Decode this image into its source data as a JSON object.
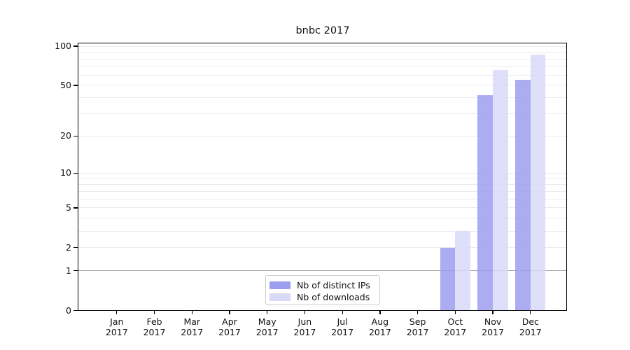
{
  "title": "bnbc 2017",
  "chart_data": {
    "type": "bar",
    "categories": [
      "Jan 2017",
      "Feb 2017",
      "Mar 2017",
      "Apr 2017",
      "May 2017",
      "Jun 2017",
      "Jul 2017",
      "Aug 2017",
      "Sep 2017",
      "Oct 2017",
      "Nov 2017",
      "Dec 2017"
    ],
    "series": [
      {
        "name": "Nb of distinct IPs",
        "color": "#9e9ef0",
        "values": [
          0,
          0,
          0,
          0,
          0,
          0,
          0,
          0,
          0,
          2,
          42,
          55
        ]
      },
      {
        "name": "Nb of downloads",
        "color": "#d9d9f8",
        "values": [
          0,
          0,
          0,
          0,
          0,
          0,
          0,
          0,
          0,
          3,
          66,
          86
        ]
      }
    ],
    "title": "bnbc 2017",
    "xlabel": "",
    "ylabel": "",
    "yscale": "log1p",
    "ylim": [
      0,
      100
    ],
    "yticks": [
      0,
      1,
      2,
      5,
      10,
      20,
      50,
      100
    ],
    "minor_gridlines": [
      3,
      4,
      6,
      7,
      8,
      9,
      30,
      40,
      60,
      70,
      80,
      90
    ],
    "grid": true,
    "legend_position": "lower center",
    "gridline_color": "#ebebeb",
    "emphasized_gridline_value": 1,
    "emphasized_gridline_color": "#a9a9a9"
  }
}
